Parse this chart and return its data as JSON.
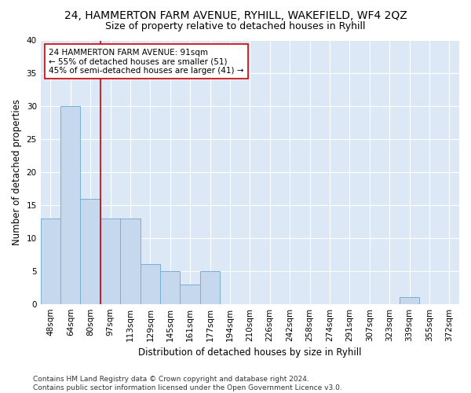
{
  "title": "24, HAMMERTON FARM AVENUE, RYHILL, WAKEFIELD, WF4 2QZ",
  "subtitle": "Size of property relative to detached houses in Ryhill",
  "xlabel": "Distribution of detached houses by size in Ryhill",
  "ylabel": "Number of detached properties",
  "categories": [
    "48sqm",
    "64sqm",
    "80sqm",
    "97sqm",
    "113sqm",
    "129sqm",
    "145sqm",
    "161sqm",
    "177sqm",
    "194sqm",
    "210sqm",
    "226sqm",
    "242sqm",
    "258sqm",
    "274sqm",
    "291sqm",
    "307sqm",
    "323sqm",
    "339sqm",
    "355sqm",
    "372sqm"
  ],
  "values": [
    13,
    30,
    16,
    13,
    13,
    6,
    5,
    3,
    5,
    0,
    0,
    0,
    0,
    0,
    0,
    0,
    0,
    0,
    1,
    0,
    0
  ],
  "bar_color": "#c5d8ee",
  "bar_edge_color": "#7aaed4",
  "subject_line_color": "#cc0000",
  "annotation_text": "24 HAMMERTON FARM AVENUE: 91sqm\n← 55% of detached houses are smaller (51)\n45% of semi-detached houses are larger (41) →",
  "annotation_box_color": "#ffffff",
  "annotation_box_edge": "#cc0000",
  "ylim": [
    0,
    40
  ],
  "yticks": [
    0,
    5,
    10,
    15,
    20,
    25,
    30,
    35,
    40
  ],
  "footer": "Contains HM Land Registry data © Crown copyright and database right 2024.\nContains public sector information licensed under the Open Government Licence v3.0.",
  "bg_color": "#dce8f5",
  "fig_bg_color": "#ffffff",
  "title_fontsize": 10,
  "subtitle_fontsize": 9,
  "axis_label_fontsize": 8.5,
  "tick_fontsize": 7.5,
  "annotation_fontsize": 7.5,
  "footer_fontsize": 6.5
}
